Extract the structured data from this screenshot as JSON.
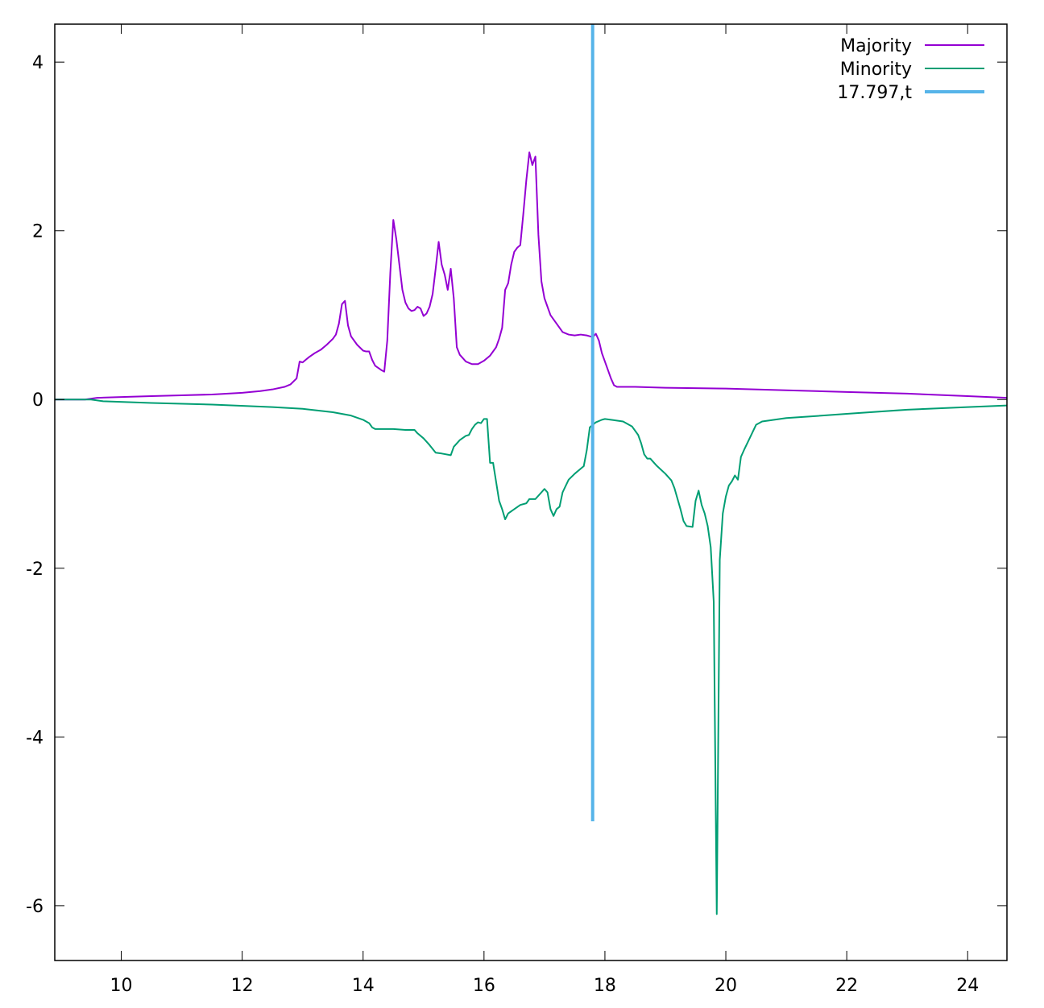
{
  "chart_data": {
    "type": "line",
    "title": "",
    "xlabel": "",
    "ylabel": "",
    "xlim": [
      8.9,
      24.65
    ],
    "ylim": [
      -6.65,
      4.45
    ],
    "x_ticks": [
      10,
      12,
      14,
      16,
      18,
      20,
      22,
      24
    ],
    "y_ticks": [
      4,
      2,
      0,
      -2,
      -4,
      -6
    ],
    "x_tick_labels": [
      "10",
      "12",
      "14",
      "16",
      "18",
      "20",
      "22",
      "24"
    ],
    "y_tick_labels": [
      "4",
      "2",
      "0",
      "-2",
      "-4",
      "-6"
    ],
    "grid": false,
    "legend_position": "top-right",
    "series": [
      {
        "name": "Majority",
        "color": "#9400d3",
        "points": [
          [
            8.9,
            0.0
          ],
          [
            9.4,
            0.0
          ],
          [
            9.6,
            0.02
          ],
          [
            10.0,
            0.03
          ],
          [
            10.5,
            0.04
          ],
          [
            11.0,
            0.05
          ],
          [
            11.5,
            0.06
          ],
          [
            12.0,
            0.08
          ],
          [
            12.3,
            0.1
          ],
          [
            12.5,
            0.12
          ],
          [
            12.7,
            0.15
          ],
          [
            12.8,
            0.18
          ],
          [
            12.9,
            0.25
          ],
          [
            12.95,
            0.45
          ],
          [
            13.0,
            0.44
          ],
          [
            13.1,
            0.5
          ],
          [
            13.2,
            0.55
          ],
          [
            13.3,
            0.59
          ],
          [
            13.4,
            0.65
          ],
          [
            13.5,
            0.72
          ],
          [
            13.55,
            0.77
          ],
          [
            13.6,
            0.9
          ],
          [
            13.65,
            1.13
          ],
          [
            13.7,
            1.17
          ],
          [
            13.75,
            0.88
          ],
          [
            13.8,
            0.75
          ],
          [
            13.9,
            0.65
          ],
          [
            14.0,
            0.58
          ],
          [
            14.05,
            0.57
          ],
          [
            14.1,
            0.57
          ],
          [
            14.15,
            0.47
          ],
          [
            14.2,
            0.4
          ],
          [
            14.3,
            0.35
          ],
          [
            14.35,
            0.33
          ],
          [
            14.4,
            0.7
          ],
          [
            14.45,
            1.5
          ],
          [
            14.5,
            2.13
          ],
          [
            14.55,
            1.9
          ],
          [
            14.6,
            1.6
          ],
          [
            14.65,
            1.3
          ],
          [
            14.7,
            1.15
          ],
          [
            14.75,
            1.08
          ],
          [
            14.8,
            1.05
          ],
          [
            14.85,
            1.06
          ],
          [
            14.9,
            1.1
          ],
          [
            14.95,
            1.08
          ],
          [
            15.0,
            0.99
          ],
          [
            15.05,
            1.02
          ],
          [
            15.1,
            1.1
          ],
          [
            15.15,
            1.25
          ],
          [
            15.2,
            1.55
          ],
          [
            15.25,
            1.87
          ],
          [
            15.3,
            1.6
          ],
          [
            15.35,
            1.48
          ],
          [
            15.4,
            1.3
          ],
          [
            15.45,
            1.55
          ],
          [
            15.5,
            1.2
          ],
          [
            15.55,
            0.62
          ],
          [
            15.6,
            0.53
          ],
          [
            15.7,
            0.45
          ],
          [
            15.8,
            0.42
          ],
          [
            15.9,
            0.42
          ],
          [
            16.0,
            0.46
          ],
          [
            16.1,
            0.52
          ],
          [
            16.2,
            0.62
          ],
          [
            16.25,
            0.72
          ],
          [
            16.3,
            0.85
          ],
          [
            16.35,
            1.3
          ],
          [
            16.4,
            1.38
          ],
          [
            16.45,
            1.6
          ],
          [
            16.5,
            1.75
          ],
          [
            16.55,
            1.8
          ],
          [
            16.6,
            1.83
          ],
          [
            16.65,
            2.2
          ],
          [
            16.7,
            2.6
          ],
          [
            16.75,
            2.93
          ],
          [
            16.8,
            2.78
          ],
          [
            16.85,
            2.88
          ],
          [
            16.9,
            1.95
          ],
          [
            16.95,
            1.4
          ],
          [
            17.0,
            1.2
          ],
          [
            17.05,
            1.1
          ],
          [
            17.1,
            1.0
          ],
          [
            17.2,
            0.9
          ],
          [
            17.3,
            0.8
          ],
          [
            17.4,
            0.77
          ],
          [
            17.5,
            0.76
          ],
          [
            17.6,
            0.77
          ],
          [
            17.7,
            0.76
          ],
          [
            17.75,
            0.75
          ],
          [
            17.8,
            0.74
          ],
          [
            17.85,
            0.78
          ],
          [
            17.9,
            0.7
          ],
          [
            17.95,
            0.55
          ],
          [
            18.0,
            0.45
          ],
          [
            18.05,
            0.35
          ],
          [
            18.1,
            0.25
          ],
          [
            18.15,
            0.17
          ],
          [
            18.2,
            0.15
          ],
          [
            18.5,
            0.15
          ],
          [
            19.0,
            0.14
          ],
          [
            20.0,
            0.13
          ],
          [
            21.0,
            0.11
          ],
          [
            22.0,
            0.09
          ],
          [
            23.0,
            0.07
          ],
          [
            24.0,
            0.04
          ],
          [
            24.65,
            0.02
          ]
        ]
      },
      {
        "name": "Minority",
        "color": "#009e73",
        "points": [
          [
            8.9,
            0.0
          ],
          [
            9.5,
            0.0
          ],
          [
            9.7,
            -0.02
          ],
          [
            10.5,
            -0.04
          ],
          [
            11.5,
            -0.06
          ],
          [
            12.5,
            -0.09
          ],
          [
            13.0,
            -0.11
          ],
          [
            13.5,
            -0.15
          ],
          [
            13.8,
            -0.19
          ],
          [
            14.0,
            -0.24
          ],
          [
            14.1,
            -0.28
          ],
          [
            14.15,
            -0.33
          ],
          [
            14.2,
            -0.35
          ],
          [
            14.3,
            -0.35
          ],
          [
            14.5,
            -0.35
          ],
          [
            14.7,
            -0.36
          ],
          [
            14.85,
            -0.36
          ],
          [
            14.9,
            -0.4
          ],
          [
            15.0,
            -0.46
          ],
          [
            15.1,
            -0.54
          ],
          [
            15.2,
            -0.63
          ],
          [
            15.3,
            -0.64
          ],
          [
            15.45,
            -0.66
          ],
          [
            15.5,
            -0.56
          ],
          [
            15.6,
            -0.48
          ],
          [
            15.7,
            -0.43
          ],
          [
            15.75,
            -0.42
          ],
          [
            15.8,
            -0.35
          ],
          [
            15.85,
            -0.3
          ],
          [
            15.9,
            -0.27
          ],
          [
            15.95,
            -0.28
          ],
          [
            16.0,
            -0.23
          ],
          [
            16.05,
            -0.23
          ],
          [
            16.1,
            -0.75
          ],
          [
            16.15,
            -0.75
          ],
          [
            16.25,
            -1.2
          ],
          [
            16.3,
            -1.3
          ],
          [
            16.35,
            -1.42
          ],
          [
            16.4,
            -1.35
          ],
          [
            16.5,
            -1.3
          ],
          [
            16.6,
            -1.25
          ],
          [
            16.7,
            -1.23
          ],
          [
            16.75,
            -1.18
          ],
          [
            16.85,
            -1.18
          ],
          [
            16.95,
            -1.1
          ],
          [
            17.0,
            -1.06
          ],
          [
            17.05,
            -1.1
          ],
          [
            17.1,
            -1.3
          ],
          [
            17.15,
            -1.38
          ],
          [
            17.2,
            -1.3
          ],
          [
            17.25,
            -1.27
          ],
          [
            17.3,
            -1.1
          ],
          [
            17.4,
            -0.95
          ],
          [
            17.5,
            -0.88
          ],
          [
            17.6,
            -0.82
          ],
          [
            17.65,
            -0.79
          ],
          [
            17.7,
            -0.6
          ],
          [
            17.75,
            -0.33
          ],
          [
            17.85,
            -0.27
          ],
          [
            17.95,
            -0.24
          ],
          [
            18.0,
            -0.23
          ],
          [
            18.1,
            -0.24
          ],
          [
            18.3,
            -0.26
          ],
          [
            18.45,
            -0.32
          ],
          [
            18.55,
            -0.42
          ],
          [
            18.6,
            -0.52
          ],
          [
            18.65,
            -0.65
          ],
          [
            18.7,
            -0.7
          ],
          [
            18.75,
            -0.7
          ],
          [
            18.85,
            -0.78
          ],
          [
            19.0,
            -0.88
          ],
          [
            19.1,
            -0.96
          ],
          [
            19.15,
            -1.05
          ],
          [
            19.25,
            -1.3
          ],
          [
            19.3,
            -1.44
          ],
          [
            19.35,
            -1.5
          ],
          [
            19.45,
            -1.51
          ],
          [
            19.5,
            -1.2
          ],
          [
            19.55,
            -1.08
          ],
          [
            19.6,
            -1.25
          ],
          [
            19.65,
            -1.35
          ],
          [
            19.7,
            -1.5
          ],
          [
            19.75,
            -1.75
          ],
          [
            19.8,
            -2.4
          ],
          [
            19.85,
            -6.1
          ],
          [
            19.9,
            -1.9
          ],
          [
            19.95,
            -1.35
          ],
          [
            20.0,
            -1.15
          ],
          [
            20.05,
            -1.02
          ],
          [
            20.1,
            -0.97
          ],
          [
            20.15,
            -0.9
          ],
          [
            20.2,
            -0.95
          ],
          [
            20.25,
            -0.68
          ],
          [
            20.3,
            -0.6
          ],
          [
            20.4,
            -0.45
          ],
          [
            20.5,
            -0.3
          ],
          [
            20.6,
            -0.26
          ],
          [
            21.0,
            -0.22
          ],
          [
            22.0,
            -0.17
          ],
          [
            23.0,
            -0.12
          ],
          [
            24.0,
            -0.09
          ],
          [
            24.65,
            -0.07
          ]
        ]
      },
      {
        "name": "17.797,t",
        "color": "#56b4e9",
        "points": [
          [
            17.797,
            4.45
          ],
          [
            17.797,
            -5.0
          ]
        ]
      }
    ]
  }
}
